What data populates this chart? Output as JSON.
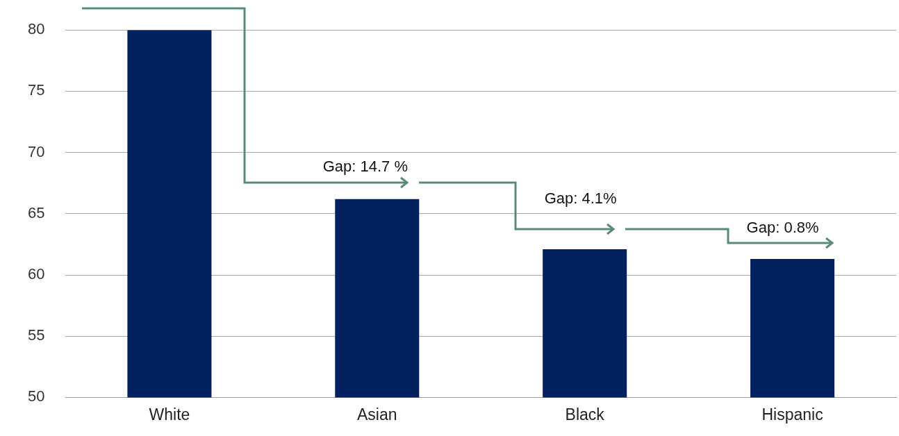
{
  "chart_data": {
    "type": "bar",
    "categories": [
      "White",
      "Asian",
      "Black",
      "Hispanic"
    ],
    "values": [
      80,
      66.2,
      62.1,
      61.3
    ],
    "color": "#03215e",
    "ylim": [
      50,
      80
    ],
    "yticks": [
      50,
      55,
      60,
      65,
      70,
      75,
      80
    ],
    "grid": "y",
    "legend": false,
    "annotations": [
      "Gap: 14.7 %",
      "Gap: 4.1%",
      "Gap: 0.8%"
    ]
  }
}
